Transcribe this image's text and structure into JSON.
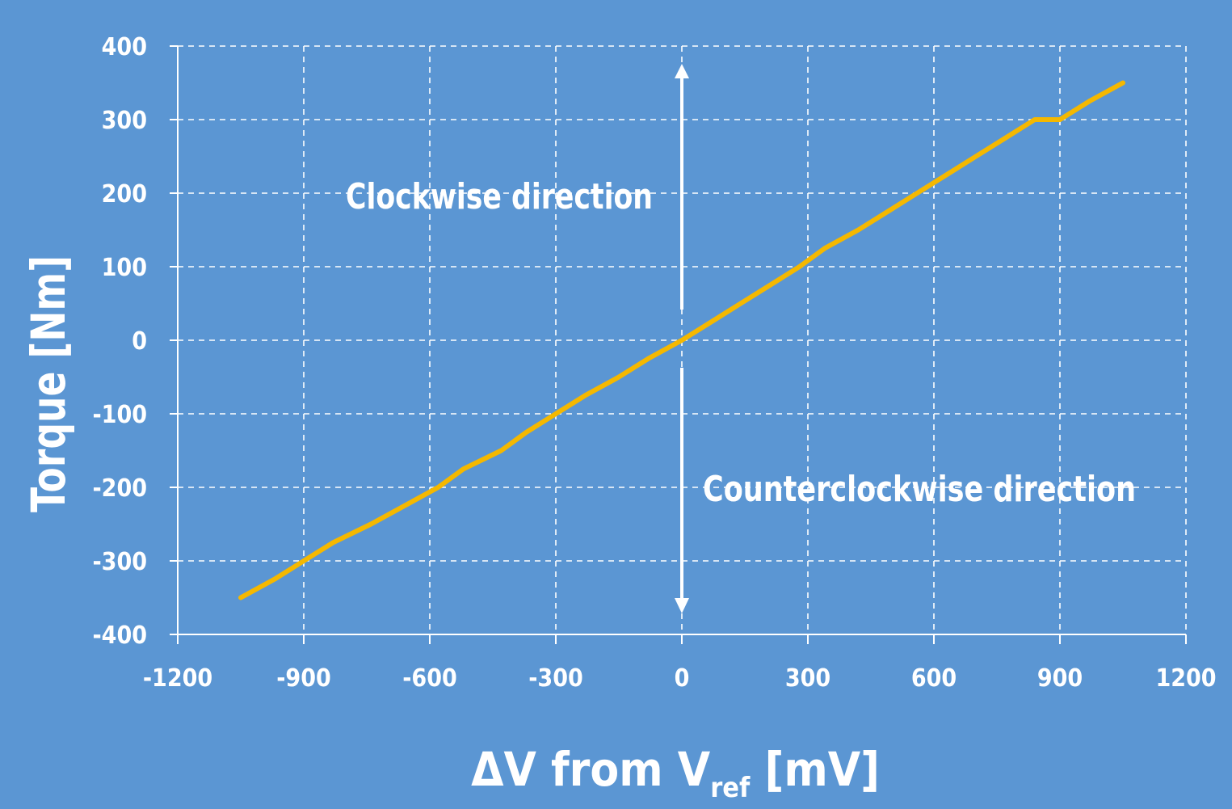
{
  "chart_data": {
    "type": "line",
    "xlabel_main": "ΔV from V",
    "xlabel_sub": "ref",
    "xlabel_unit": " [mV]",
    "ylabel": "Torque [Nm]",
    "xlim": [
      -1200,
      1200
    ],
    "ylim": [
      -400,
      400
    ],
    "x_ticks": [
      -1200,
      -900,
      -600,
      -300,
      0,
      300,
      600,
      900,
      1200
    ],
    "y_ticks": [
      400,
      300,
      200,
      100,
      0,
      -100,
      -200,
      -300,
      -400
    ],
    "x_tick_labels": [
      "-1200",
      "-900",
      "-600",
      "-300",
      "0",
      "300",
      "600",
      "900",
      "1200"
    ],
    "y_tick_labels": [
      "400",
      "300",
      "200",
      "100",
      "0",
      "-100",
      "-200",
      "-300",
      "-400"
    ],
    "grid": true,
    "grid_style": "dashed",
    "series": [
      {
        "color": "#f5b800",
        "x": [
          -1050,
          -970,
          -900,
          -830,
          -740,
          -660,
          -580,
          -520,
          -430,
          -370,
          -300,
          -230,
          -150,
          -80,
          0,
          70,
          140,
          210,
          280,
          340,
          420,
          490,
          560,
          630,
          700,
          770,
          840,
          900,
          970,
          1050
        ],
        "y": [
          -350,
          -325,
          -300,
          -275,
          -250,
          -225,
          -200,
          -175,
          -150,
          -125,
          -100,
          -75,
          -50,
          -25,
          0,
          25,
          50,
          75,
          100,
          125,
          150,
          175,
          200,
          225,
          250,
          275,
          300,
          300,
          325,
          350
        ]
      }
    ],
    "annotations": {
      "clockwise": "Clockwise direction",
      "counterclockwise": "Counterclockwise direction"
    },
    "colors": {
      "background": "#5b96d3",
      "line": "#f5b800",
      "axis": "#ffffff",
      "grid": "#ffffff",
      "text": "#ffffff"
    }
  }
}
